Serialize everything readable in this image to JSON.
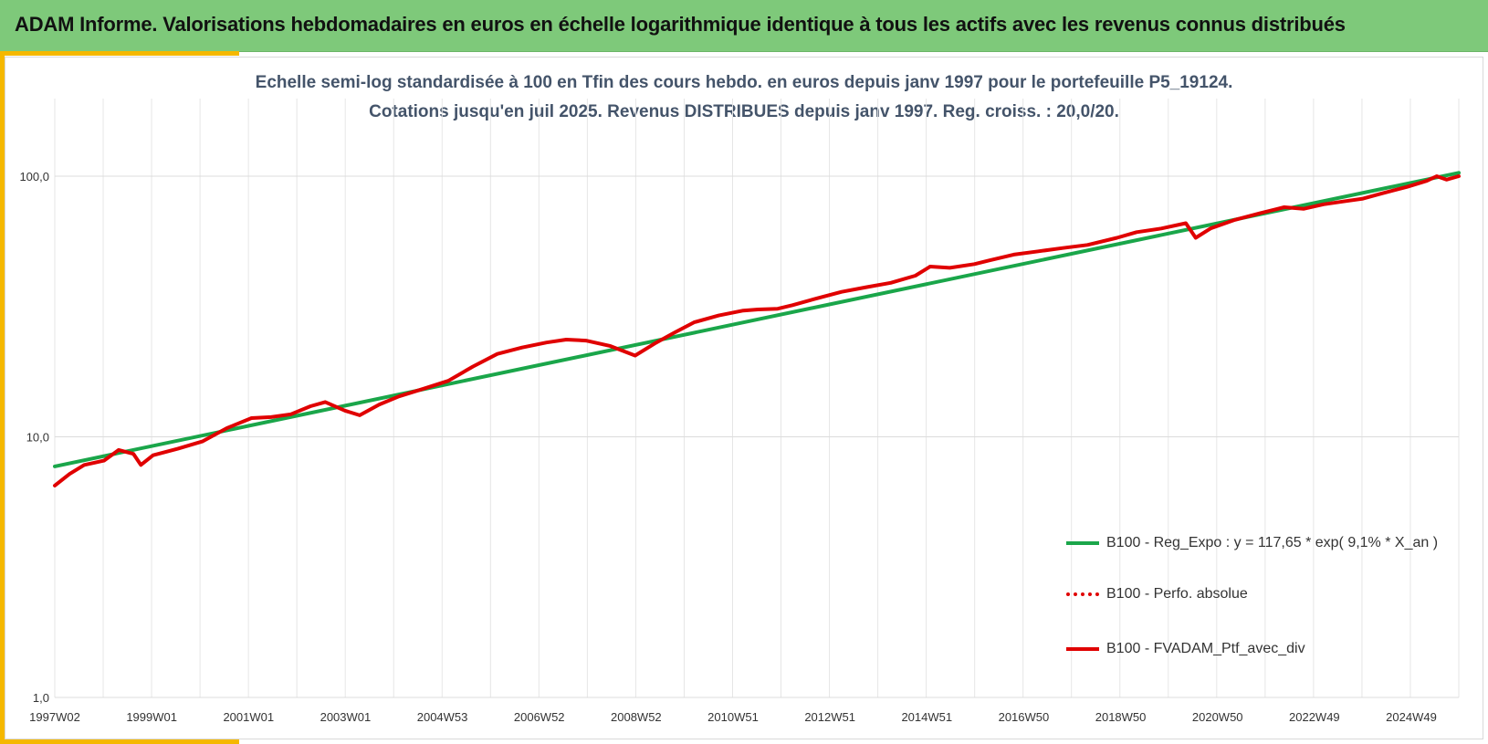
{
  "header": {
    "title": "ADAM Informe. Valorisations hebdomadaires en euros en échelle logarithmique identique à tous les actifs avec les revenus connus distribués"
  },
  "colors": {
    "banner": "#7ec97a",
    "accent": "#f5b800",
    "regression": "#1aa64a",
    "portfolio": "#e00000"
  },
  "chart_data": {
    "type": "line",
    "title_lines": [
      "Echelle semi-log standardisée à 100 en Tfin des cours hebdo.  en euros depuis janv 1997 pour le portefeuille P5_19124.",
      "Cotations jusqu'en juil 2025. Revenus DISTRIBUES depuis janv 1997. Reg. croiss. : 20,0/20."
    ],
    "y_scale": "log",
    "ylim": [
      1,
      100
    ],
    "y_ticks": [
      "1,0",
      "10,0",
      "100,0"
    ],
    "x_range": [
      1997.0,
      2025.55
    ],
    "x_ticks": [
      "1997W02",
      "1999W01",
      "2001W01",
      "2003W01",
      "2004W53",
      "2006W52",
      "2008W52",
      "2010W51",
      "2012W51",
      "2014W51",
      "2016W50",
      "2018W50",
      "2020W50",
      "2022W49",
      "2024W49"
    ],
    "grid": true,
    "legend_position": "right",
    "series": [
      {
        "name": "B100 - Reg_Expo : y = 117,65 * exp( 9,1% *  X_an )",
        "style": "solid",
        "x": [
          1997.0,
          2025.55
        ],
        "values": [
          7.7,
          103.0
        ]
      },
      {
        "name": "B100 - Perfo. absolue",
        "style": "dotted",
        "x": [],
        "values": []
      },
      {
        "name": "B100 - FVADAM_Ptf_avec_div",
        "style": "solid",
        "x": [
          1997.0,
          1997.3,
          1997.6,
          1998.0,
          1998.3,
          1998.6,
          1998.75,
          1999.0,
          1999.5,
          2000.0,
          2000.5,
          2001.0,
          2001.4,
          2001.8,
          2002.2,
          2002.5,
          2002.9,
          2003.2,
          2003.6,
          2004.0,
          2004.5,
          2005.0,
          2005.5,
          2006.0,
          2006.5,
          2007.0,
          2007.4,
          2007.8,
          2008.3,
          2008.8,
          2009.2,
          2009.6,
          2010.0,
          2010.5,
          2011.0,
          2011.3,
          2011.7,
          2012.0,
          2012.5,
          2013.0,
          2013.5,
          2014.0,
          2014.5,
          2014.8,
          2015.2,
          2015.7,
          2016.0,
          2016.5,
          2017.0,
          2017.5,
          2018.0,
          2018.6,
          2019.0,
          2019.5,
          2020.0,
          2020.2,
          2020.5,
          2021.0,
          2021.5,
          2022.0,
          2022.4,
          2022.8,
          2023.2,
          2023.6,
          2024.0,
          2024.5,
          2024.9,
          2025.1,
          2025.3,
          2025.55
        ],
        "values": [
          6.5,
          7.2,
          7.8,
          8.1,
          8.9,
          8.6,
          7.8,
          8.5,
          9.0,
          9.6,
          10.8,
          11.8,
          11.9,
          12.2,
          13.1,
          13.6,
          12.6,
          12.1,
          13.3,
          14.3,
          15.3,
          16.4,
          18.6,
          20.8,
          22.0,
          23.0,
          23.6,
          23.4,
          22.3,
          20.5,
          22.8,
          25.1,
          27.5,
          29.2,
          30.5,
          30.8,
          31.0,
          32.0,
          34.0,
          36.0,
          37.5,
          39.0,
          41.5,
          45.0,
          44.5,
          46.0,
          47.5,
          50.0,
          51.5,
          53.0,
          54.5,
          58.0,
          61.0,
          63.0,
          66.0,
          58.0,
          63.0,
          68.0,
          72.0,
          76.0,
          75.0,
          78.0,
          80.0,
          82.0,
          86.0,
          91.0,
          96.0,
          100.0,
          97.0,
          100.0
        ]
      }
    ]
  }
}
